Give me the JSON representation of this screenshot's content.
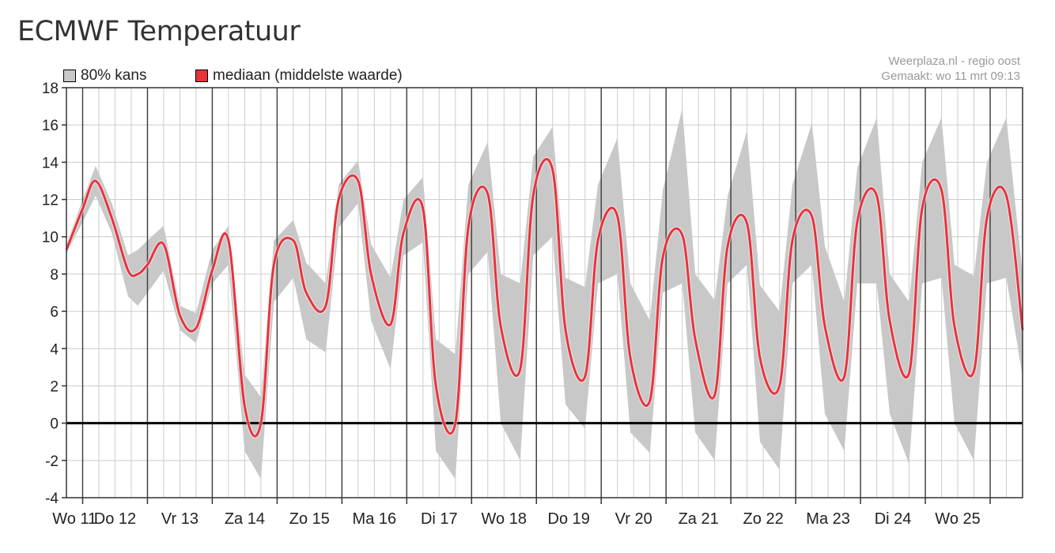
{
  "header": {
    "title": "ECMWF Temperatuur"
  },
  "legend": [
    {
      "label": "80% kans",
      "color": "#c8c8c8"
    },
    {
      "label": "mediaan (middelste waarde)",
      "color": "#e8323c"
    }
  ],
  "credit": {
    "line1": "Weerplaza.nl - regio oost",
    "line2": "Gemaakt: wo 11 mrt 09:13"
  },
  "chart_data": {
    "type": "area",
    "title": "ECMWF Temperatuur",
    "ylim": [
      -4,
      18
    ],
    "yticks": [
      -4,
      -2,
      0,
      2,
      4,
      6,
      8,
      10,
      12,
      14,
      16,
      18
    ],
    "x_unit": "day index from Wo 11 (0 = Wo 11 00:00)",
    "xlim": [
      0.75,
      15.5
    ],
    "day_labels": [
      "Wo 11",
      "Do 12",
      "Vr 13",
      "Za 14",
      "Zo 15",
      "Ma 16",
      "Di 17",
      "Wo 18",
      "Do 19",
      "Vr 20",
      "Za 21",
      "Zo 22",
      "Ma 23",
      "Di 24",
      "Wo 25"
    ],
    "grid": true,
    "legend_position": "top-left",
    "colors": {
      "band": "#c8c8c8",
      "median": "#e8323c",
      "zero_line": "#000000",
      "grid": "#cccccc",
      "day_line": "#444444"
    },
    "series": [
      {
        "name": "mediaan (middelste waarde)",
        "x": [
          0.75,
          1.0,
          1.2,
          1.45,
          1.7,
          1.85,
          2.0,
          2.25,
          2.5,
          2.75,
          3.0,
          3.25,
          3.5,
          3.75,
          3.95,
          4.25,
          4.45,
          4.75,
          4.95,
          5.25,
          5.45,
          5.75,
          5.95,
          6.25,
          6.45,
          6.75,
          6.95,
          7.25,
          7.45,
          7.75,
          7.95,
          8.25,
          8.45,
          8.75,
          8.95,
          9.25,
          9.45,
          9.75,
          9.95,
          10.25,
          10.45,
          10.75,
          10.95,
          11.25,
          11.45,
          11.75,
          11.95,
          12.25,
          12.45,
          12.75,
          12.95,
          13.25,
          13.45,
          13.75,
          13.95,
          14.25,
          14.45,
          14.75,
          14.95,
          15.25,
          15.5
        ],
        "y": [
          9.3,
          11.5,
          13.0,
          11.0,
          8.2,
          8.0,
          8.5,
          9.6,
          5.8,
          5.1,
          8.2,
          9.8,
          0.9,
          0.0,
          8.5,
          9.8,
          7.0,
          6.3,
          12.0,
          13.0,
          8.0,
          5.3,
          10.2,
          11.5,
          2.0,
          0.0,
          10.5,
          12.3,
          5.2,
          2.9,
          12.2,
          13.6,
          5.0,
          2.5,
          9.8,
          11.1,
          3.5,
          1.2,
          8.9,
          10.1,
          4.5,
          1.5,
          9.5,
          10.7,
          3.5,
          2.0,
          9.8,
          11.1,
          5.2,
          2.5,
          10.8,
          12.2,
          5.5,
          2.7,
          11.5,
          12.5,
          5.2,
          2.8,
          11.0,
          12.2,
          5.0
        ]
      },
      {
        "name": "80% kans",
        "x": [
          0.75,
          1.0,
          1.2,
          1.45,
          1.7,
          1.85,
          2.0,
          2.25,
          2.5,
          2.75,
          3.0,
          3.25,
          3.5,
          3.75,
          3.95,
          4.25,
          4.45,
          4.75,
          4.95,
          5.25,
          5.45,
          5.75,
          5.95,
          6.25,
          6.45,
          6.75,
          6.95,
          7.25,
          7.45,
          7.75,
          7.95,
          8.25,
          8.45,
          8.75,
          8.95,
          9.25,
          9.45,
          9.75,
          9.95,
          10.25,
          10.45,
          10.75,
          10.95,
          11.25,
          11.45,
          11.75,
          11.95,
          12.25,
          12.45,
          12.75,
          12.95,
          13.25,
          13.45,
          13.75,
          13.95,
          14.25,
          14.45,
          14.75,
          14.95,
          15.25,
          15.5
        ],
        "low": [
          9.1,
          10.8,
          12.2,
          10.2,
          6.8,
          6.3,
          7.0,
          8.2,
          5.0,
          4.3,
          7.5,
          8.5,
          -1.5,
          -3.0,
          6.5,
          7.8,
          4.5,
          3.8,
          10.5,
          11.8,
          5.5,
          2.9,
          9.0,
          9.7,
          -1.5,
          -3.0,
          8.0,
          9.2,
          0.0,
          -2.0,
          9.0,
          10.0,
          1.0,
          -0.3,
          7.5,
          8.0,
          -0.5,
          -1.6,
          7.0,
          7.5,
          -0.5,
          -2.0,
          7.5,
          8.5,
          -1.0,
          -2.5,
          7.5,
          8.5,
          0.5,
          -1.5,
          7.5,
          7.5,
          0.5,
          -2.2,
          7.5,
          7.8,
          0.0,
          -2.0,
          7.5,
          7.8,
          2.5
        ],
        "high": [
          9.6,
          12.0,
          13.8,
          11.8,
          9.0,
          9.3,
          9.8,
          10.6,
          6.3,
          5.9,
          9.3,
          10.6,
          2.6,
          1.4,
          9.8,
          10.9,
          8.6,
          7.5,
          12.8,
          14.1,
          9.6,
          7.8,
          12.0,
          13.2,
          4.5,
          3.7,
          12.8,
          15.1,
          8.0,
          7.5,
          14.3,
          15.9,
          7.8,
          7.3,
          12.8,
          15.3,
          7.5,
          5.5,
          12.5,
          16.9,
          8.0,
          6.6,
          12.2,
          15.7,
          7.4,
          6.0,
          12.8,
          16.1,
          9.5,
          6.5,
          13.7,
          16.4,
          8.0,
          6.5,
          14.0,
          16.4,
          8.5,
          7.9,
          14.0,
          16.4,
          8.0
        ]
      }
    ]
  }
}
